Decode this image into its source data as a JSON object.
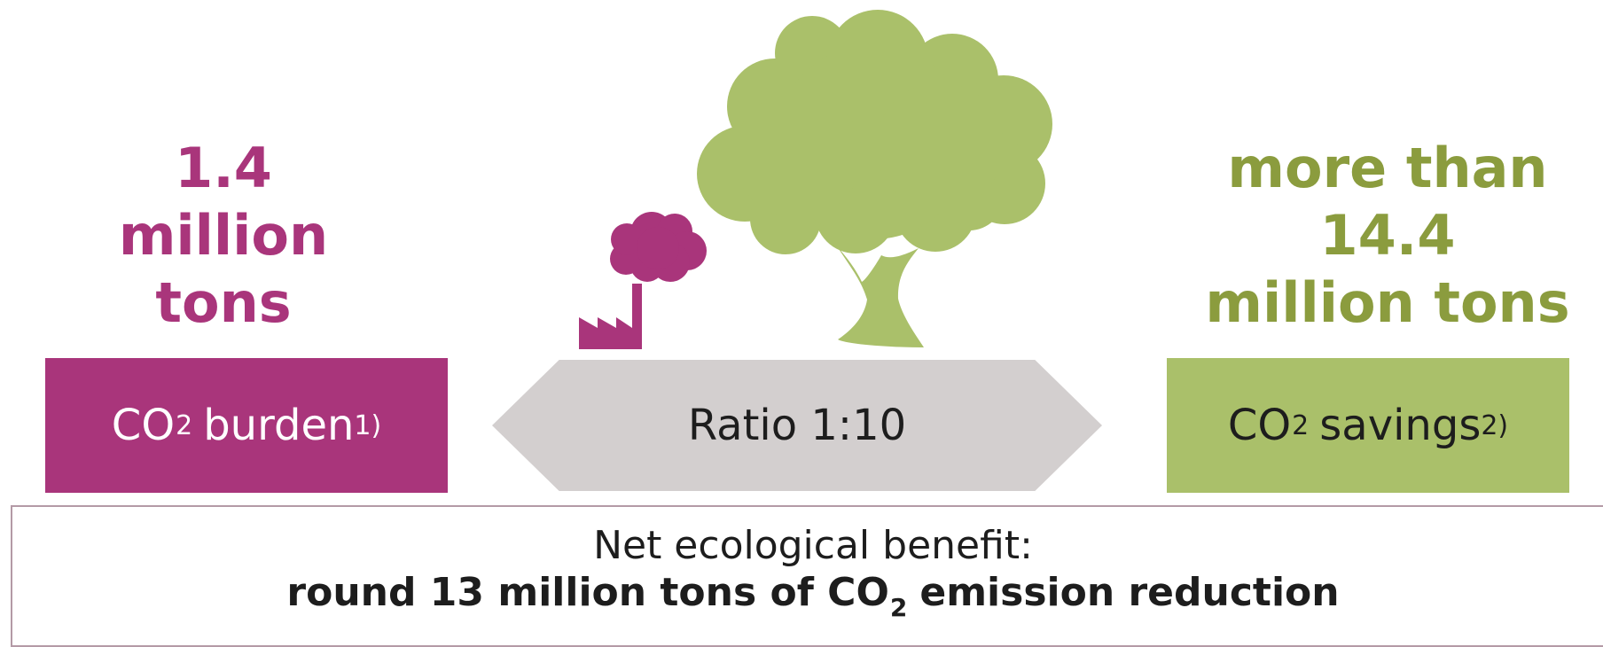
{
  "burden": {
    "amount_lines": [
      "1.4",
      "million",
      "tons"
    ],
    "co2_prefix": "CO",
    "co2_subscript": "2",
    "label": "burden",
    "footnote": "1)",
    "color": "#a9357b"
  },
  "savings": {
    "amount_lines": [
      "more than",
      "14.4",
      "million tons"
    ],
    "co2_prefix": "CO",
    "co2_subscript": "2",
    "label": "savings",
    "footnote": "2)",
    "color": "#aac06a",
    "text_color": "#8b9c3e"
  },
  "ratio": {
    "label": "Ratio 1:10",
    "color": "#d3cfcf"
  },
  "summary": {
    "line1": "Net ecological benefit:",
    "line2_prefix": "round 13 million tons of CO",
    "line2_subscript": "2",
    "line2_suffix": "emission reduction"
  },
  "icons": {
    "factory": "factory-icon",
    "cloud": "smoke-cloud-icon",
    "tree": "tree-icon"
  }
}
